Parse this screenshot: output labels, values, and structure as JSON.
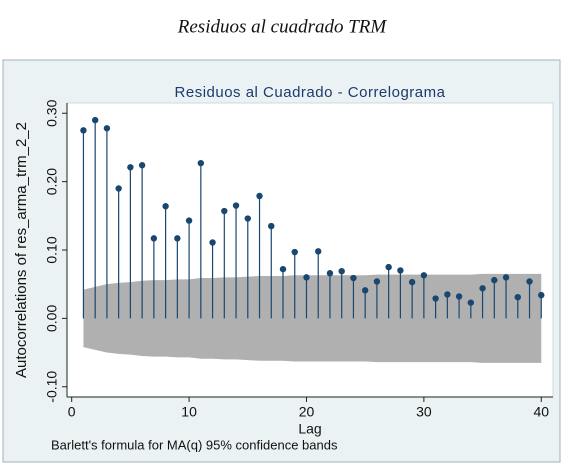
{
  "caption": "Residuos al cuadrado TRM",
  "chart_data": {
    "type": "correlogram",
    "title": "Residuos al Cuadrado - Correlograma",
    "x_label": "Lag",
    "y_label": "Autocorrelations of res_arma_trm_2_2",
    "note": "Barlett's formula for MA(q) 95% confidence bands",
    "x": [
      1,
      2,
      3,
      4,
      5,
      6,
      7,
      8,
      9,
      10,
      11,
      12,
      13,
      14,
      15,
      16,
      17,
      18,
      19,
      20,
      21,
      22,
      23,
      24,
      25,
      26,
      27,
      28,
      29,
      30,
      31,
      32,
      33,
      34,
      35,
      36,
      37,
      38,
      39,
      40
    ],
    "values": [
      0.275,
      0.29,
      0.278,
      0.19,
      0.221,
      0.224,
      0.117,
      0.164,
      0.117,
      0.143,
      0.227,
      0.111,
      0.157,
      0.165,
      0.146,
      0.179,
      0.135,
      0.072,
      0.097,
      0.06,
      0.098,
      0.066,
      0.069,
      0.059,
      0.041,
      0.054,
      0.075,
      0.07,
      0.053,
      0.063,
      0.029,
      0.035,
      0.032,
      0.023,
      0.044,
      0.056,
      0.06,
      0.031,
      0.054,
      0.034
    ],
    "color": "#1a476f",
    "band_upper": [
      0.042,
      0.046,
      0.05,
      0.052,
      0.053,
      0.055,
      0.056,
      0.056,
      0.057,
      0.057,
      0.059,
      0.059,
      0.06,
      0.06,
      0.061,
      0.062,
      0.062,
      0.062,
      0.063,
      0.063,
      0.063,
      0.063,
      0.063,
      0.063,
      0.063,
      0.064,
      0.064,
      0.064,
      0.064,
      0.064,
      0.064,
      0.064,
      0.064,
      0.064,
      0.065,
      0.065,
      0.065,
      0.065,
      0.065,
      0.065
    ],
    "band_lower": [
      -0.042,
      -0.046,
      -0.05,
      -0.052,
      -0.053,
      -0.055,
      -0.056,
      -0.056,
      -0.057,
      -0.057,
      -0.059,
      -0.059,
      -0.06,
      -0.06,
      -0.061,
      -0.062,
      -0.062,
      -0.062,
      -0.063,
      -0.063,
      -0.063,
      -0.063,
      -0.063,
      -0.063,
      -0.063,
      -0.064,
      -0.064,
      -0.064,
      -0.064,
      -0.064,
      -0.064,
      -0.064,
      -0.064,
      -0.064,
      -0.065,
      -0.065,
      -0.065,
      -0.065,
      -0.065,
      -0.065
    ],
    "band_color": "#b0b0b0",
    "xlim": [
      -0.4,
      41
    ],
    "ylim": [
      -0.115,
      0.315
    ],
    "xticks": [
      0,
      10,
      20,
      30,
      40
    ],
    "yticks": [
      {
        "value": -0.1,
        "label": "-0.10"
      },
      {
        "value": 0,
        "label": "0.00"
      },
      {
        "value": 0.1,
        "label": "0.10"
      },
      {
        "value": 0.2,
        "label": "0.20"
      },
      {
        "value": 0.3,
        "label": "0.30"
      }
    ],
    "grid": false
  }
}
